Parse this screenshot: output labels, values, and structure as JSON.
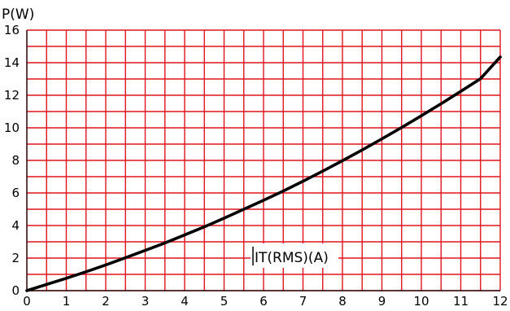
{
  "chart_data": {
    "type": "line",
    "ylabel": "P(W)",
    "annotation": "IT(RMS)(A)",
    "xlim": [
      0,
      12
    ],
    "ylim": [
      0,
      16
    ],
    "x_ticks": [
      0,
      1,
      2,
      3,
      4,
      5,
      6,
      7,
      8,
      9,
      10,
      11,
      12
    ],
    "y_ticks": [
      0,
      2,
      4,
      6,
      8,
      10,
      12,
      14,
      16
    ],
    "grid": true,
    "grid_color": "#e0141e",
    "line_color": "#000000",
    "series": [
      {
        "x": [
          0,
          0.5,
          1,
          1.5,
          2,
          2.5,
          3,
          3.5,
          4,
          4.5,
          5,
          5.5,
          6,
          6.5,
          7,
          7.5,
          8,
          8.5,
          9,
          9.5,
          10,
          10.5,
          11,
          11.5,
          12
        ],
        "y": [
          0,
          0.38,
          0.76,
          1.16,
          1.58,
          2.02,
          2.47,
          2.93,
          3.42,
          3.92,
          4.45,
          5.0,
          5.55,
          6.12,
          6.72,
          7.34,
          7.98,
          8.64,
          9.32,
          10.02,
          10.74,
          11.48,
          12.24,
          13.02,
          14.35
        ]
      }
    ]
  }
}
